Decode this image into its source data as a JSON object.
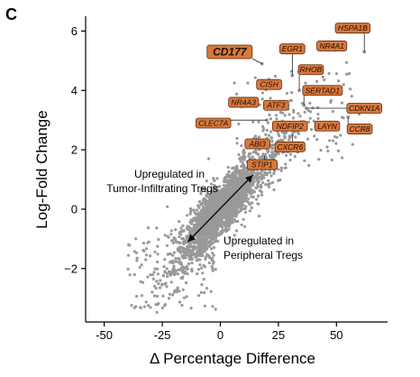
{
  "panel_label": "C",
  "chart_data": {
    "type": "scatter",
    "title": "",
    "xlabel": "Δ Percentage Difference",
    "ylabel": "Log-Fold Change",
    "xlim": [
      -58,
      72
    ],
    "ylim": [
      -3.8,
      6.5
    ],
    "xticks": [
      -50,
      -25,
      0,
      25,
      50
    ],
    "yticks": [
      -2,
      0,
      2,
      4,
      6
    ],
    "xtick_labels": [
      "-50",
      "-25",
      "0",
      "25",
      "50"
    ],
    "ytick_labels": [
      "−2",
      "0",
      "2",
      "4",
      "6"
    ],
    "point_color": "#999999",
    "label_fill": "#d9783c",
    "grid": false,
    "labeled_genes": [
      {
        "name": "HSPA1B",
        "x": 62,
        "y": 5.3,
        "lx": 57,
        "ly": 6.1
      },
      {
        "name": "NR4A1",
        "x": 53,
        "y": 5.5,
        "lx": 48,
        "ly": 5.5
      },
      {
        "name": "CD177",
        "x": 18,
        "y": 4.9,
        "lx": 4,
        "ly": 5.3,
        "highlight": true
      },
      {
        "name": "EGR1",
        "x": 31,
        "y": 4.5,
        "lx": 31,
        "ly": 5.4
      },
      {
        "name": "RHOB",
        "x": 34,
        "y": 4.0,
        "lx": 39,
        "ly": 4.7
      },
      {
        "name": "CISH",
        "x": 24,
        "y": 4.3,
        "lx": 21,
        "ly": 4.2
      },
      {
        "name": "SERTAD1",
        "x": 36,
        "y": 3.5,
        "lx": 44,
        "ly": 4.0
      },
      {
        "name": "NR4A3",
        "x": 12,
        "y": 3.5,
        "lx": 10,
        "ly": 3.6
      },
      {
        "name": "ATF3",
        "x": 29,
        "y": 3.5,
        "lx": 24,
        "ly": 3.5
      },
      {
        "name": "CDKN1A",
        "x": 37,
        "y": 3.4,
        "lx": 62,
        "ly": 3.4
      },
      {
        "name": "CLEC7A",
        "x": 20,
        "y": 3.0,
        "lx": -3,
        "ly": 2.9
      },
      {
        "name": "NDFIP2",
        "x": 30,
        "y": 2.8,
        "lx": 30,
        "ly": 2.8
      },
      {
        "name": "LAYN",
        "x": 47,
        "y": 2.8,
        "lx": 46,
        "ly": 2.8
      },
      {
        "name": "CCR8",
        "x": 55,
        "y": 3.1,
        "lx": 60,
        "ly": 2.7
      },
      {
        "name": "ABI3",
        "x": 22,
        "y": 2.4,
        "lx": 16,
        "ly": 2.2
      },
      {
        "name": "CXCR6",
        "x": 31,
        "y": 2.5,
        "lx": 30,
        "ly": 2.1
      },
      {
        "name": "STIP1",
        "x": 19,
        "y": 1.8,
        "lx": 18,
        "ly": 1.5
      }
    ],
    "annotations": {
      "upper": [
        "Upregulated in",
        "Tumor-Infiltrating Tregs"
      ],
      "lower": [
        "Upregulated in",
        "Peripheral Tregs"
      ],
      "arrow_from": [
        14,
        1.15
      ],
      "arrow_to": [
        -14,
        -1.1
      ]
    }
  }
}
